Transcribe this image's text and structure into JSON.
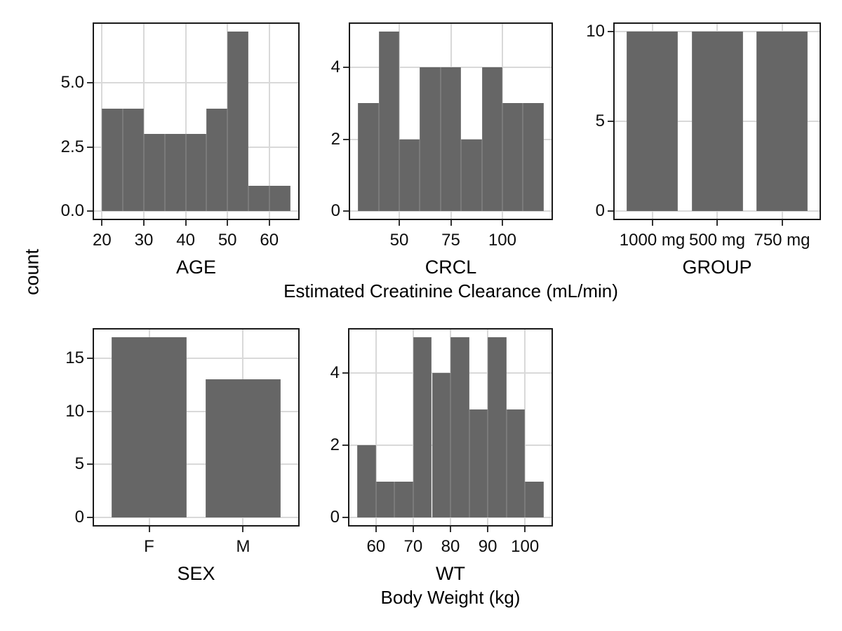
{
  "figure": {
    "y_axis_shared_label": "count",
    "colors": {
      "bar_fill": "#666666",
      "bar_seam": "#7a7a7a",
      "gridline": "#d9d9d9",
      "panel_border": "#1a1a1a",
      "tick_mark": "#333333",
      "text": "#000000"
    }
  },
  "chart_data": [
    {
      "id": "age",
      "type": "bar",
      "subtype": "histogram",
      "title": "AGE",
      "subtitle": "",
      "bin_start": 20,
      "bin_width": 5,
      "counts": [
        4,
        4,
        3,
        3,
        3,
        4,
        7,
        1,
        1
      ],
      "xlim": [
        17.75,
        67.25
      ],
      "ylim": [
        -0.35,
        7.35
      ],
      "xticks": [
        20,
        30,
        40,
        50,
        60
      ],
      "xtick_labels": [
        "20",
        "30",
        "40",
        "50",
        "60"
      ],
      "yticks": [
        0,
        2.5,
        5
      ],
      "ytick_labels": [
        "0.0",
        "2.5",
        "5.0"
      ],
      "grid": true,
      "legend": "none"
    },
    {
      "id": "crcl",
      "type": "bar",
      "subtype": "histogram",
      "title": "CRCL",
      "subtitle": "Estimated Creatinine Clearance (mL/min)",
      "bin_start": 30,
      "bin_width": 10,
      "counts": [
        3,
        5,
        2,
        4,
        4,
        2,
        4,
        3,
        3
      ],
      "xlim": [
        25.5,
        124.5
      ],
      "ylim": [
        -0.25,
        5.25
      ],
      "xticks": [
        50,
        75,
        100
      ],
      "xtick_labels": [
        "50",
        "75",
        "100"
      ],
      "yticks": [
        0,
        2,
        4
      ],
      "ytick_labels": [
        "0",
        "2",
        "4"
      ],
      "grid": true,
      "legend": "none"
    },
    {
      "id": "group",
      "type": "bar",
      "subtype": "categorical",
      "title": "GROUP",
      "subtitle": "",
      "categories": [
        "1000 mg",
        "500 mg",
        "750 mg"
      ],
      "values": [
        10,
        10,
        10
      ],
      "ylim": [
        -0.5,
        10.5
      ],
      "yticks": [
        0,
        5,
        10
      ],
      "ytick_labels": [
        "0",
        "5",
        "10"
      ],
      "grid": true,
      "legend": "none"
    },
    {
      "id": "sex",
      "type": "bar",
      "subtype": "categorical",
      "title": "SEX",
      "subtitle": "",
      "categories": [
        "F",
        "M"
      ],
      "values": [
        17,
        13
      ],
      "ylim": [
        -0.85,
        17.85
      ],
      "yticks": [
        0,
        5,
        10,
        15
      ],
      "ytick_labels": [
        "0",
        "5",
        "10",
        "15"
      ],
      "grid": true,
      "legend": "none"
    },
    {
      "id": "wt",
      "type": "bar",
      "subtype": "histogram",
      "title": "WT",
      "subtitle": "Body Weight (kg)",
      "bin_start": 55,
      "bin_width": 5,
      "counts": [
        2,
        1,
        1,
        5,
        4,
        5,
        3,
        5,
        3,
        1
      ],
      "xlim": [
        52.5,
        107.5
      ],
      "ylim": [
        -0.25,
        5.25
      ],
      "xticks": [
        60,
        70,
        80,
        90,
        100
      ],
      "xtick_labels": [
        "60",
        "70",
        "80",
        "90",
        "100"
      ],
      "yticks": [
        0,
        2,
        4
      ],
      "ytick_labels": [
        "0",
        "2",
        "4"
      ],
      "grid": true,
      "legend": "none"
    }
  ]
}
